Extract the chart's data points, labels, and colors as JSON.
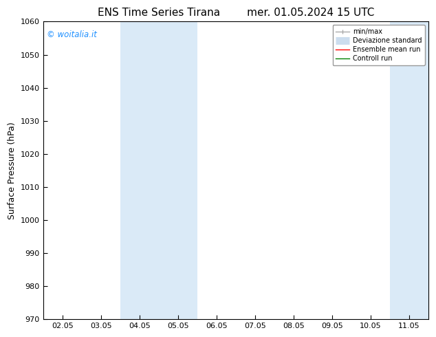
{
  "title": "ENS Time Series Tirana",
  "title2": "mer. 01.05.2024 15 UTC",
  "ylabel": "Surface Pressure (hPa)",
  "ylim": [
    970,
    1060
  ],
  "yticks": [
    970,
    980,
    990,
    1000,
    1010,
    1020,
    1030,
    1040,
    1050,
    1060
  ],
  "xtick_labels": [
    "02.05",
    "03.05",
    "04.05",
    "05.05",
    "06.05",
    "07.05",
    "08.05",
    "09.05",
    "10.05",
    "11.05"
  ],
  "watermark": "© woitalia.it",
  "watermark_color": "#1e90ff",
  "bg_color": "#ffffff",
  "plot_bg_color": "#ffffff",
  "shaded_color": "#daeaf7",
  "shaded_ranges": [
    [
      2,
      4
    ],
    [
      9,
      10
    ]
  ],
  "legend_items": [
    {
      "label": "min/max",
      "color": "#aaaaaa",
      "lw": 1.0
    },
    {
      "label": "Deviazione standard",
      "color": "#ccddee",
      "lw": 6.0
    },
    {
      "label": "Ensemble mean run",
      "color": "red",
      "lw": 1.0
    },
    {
      "label": "Controll run",
      "color": "green",
      "lw": 1.0
    }
  ],
  "x_positions": [
    0,
    1,
    2,
    3,
    4,
    5,
    6,
    7,
    8,
    9
  ],
  "title_fontsize": 11,
  "ylabel_fontsize": 9,
  "tick_fontsize": 8,
  "legend_fontsize": 7
}
